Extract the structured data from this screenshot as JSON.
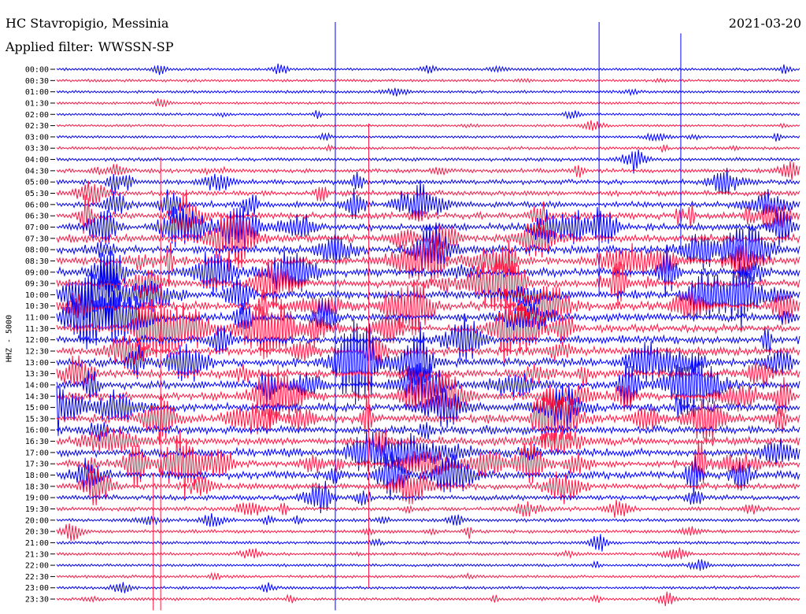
{
  "header": {
    "station": "HC Stavropigio, Messinia",
    "date": "2021-03-20",
    "filter_label": "Applied filter:",
    "filter_name": "WWSSN-SP"
  },
  "channel_label": "HHZ - 5000",
  "colors": {
    "trace_a": "#0000ff",
    "trace_b": "#ff1744",
    "background": "#ffffff",
    "text": "#000000"
  },
  "chart_data": {
    "type": "line",
    "title": "HC Stavropigio, Messinia",
    "subtitle": "Applied filter: WWSSN-SP",
    "ylabel": "HHZ - 5000",
    "xlabel": "",
    "y_ticks": [
      "00:00",
      "00:30",
      "01:00",
      "01:30",
      "02:00",
      "02:30",
      "03:00",
      "03:30",
      "04:00",
      "04:30",
      "05:00",
      "05:30",
      "06:00",
      "06:30",
      "07:00",
      "07:30",
      "08:00",
      "08:30",
      "09:00",
      "09:30",
      "10:00",
      "10:30",
      "11:00",
      "11:30",
      "12:00",
      "12:30",
      "13:00",
      "13:30",
      "14:00",
      "14:30",
      "15:00",
      "15:30",
      "16:00",
      "16:30",
      "17:00",
      "17:30",
      "18:00",
      "18:30",
      "19:00",
      "19:30",
      "20:00",
      "20:30",
      "21:00",
      "21:30",
      "22:00",
      "22:30",
      "23:00",
      "23:30"
    ],
    "trace_colors": [
      "#0000ff",
      "#ff1744"
    ],
    "line_minutes": 30,
    "grid": false,
    "legend": "none",
    "activity_level": [
      0.12,
      0.12,
      0.15,
      0.08,
      0.08,
      0.07,
      0.1,
      0.18,
      0.25,
      0.35,
      0.45,
      0.55,
      0.65,
      0.75,
      0.85,
      0.92,
      1.0,
      1.0,
      1.0,
      1.0,
      1.0,
      1.0,
      1.0,
      1.0,
      1.0,
      1.0,
      1.0,
      1.0,
      1.0,
      1.0,
      1.0,
      1.0,
      1.0,
      1.0,
      1.0,
      1.0,
      0.9,
      0.7,
      0.5,
      0.35,
      0.25,
      0.22,
      0.18,
      0.16,
      0.15,
      0.15,
      0.15,
      0.15
    ]
  }
}
